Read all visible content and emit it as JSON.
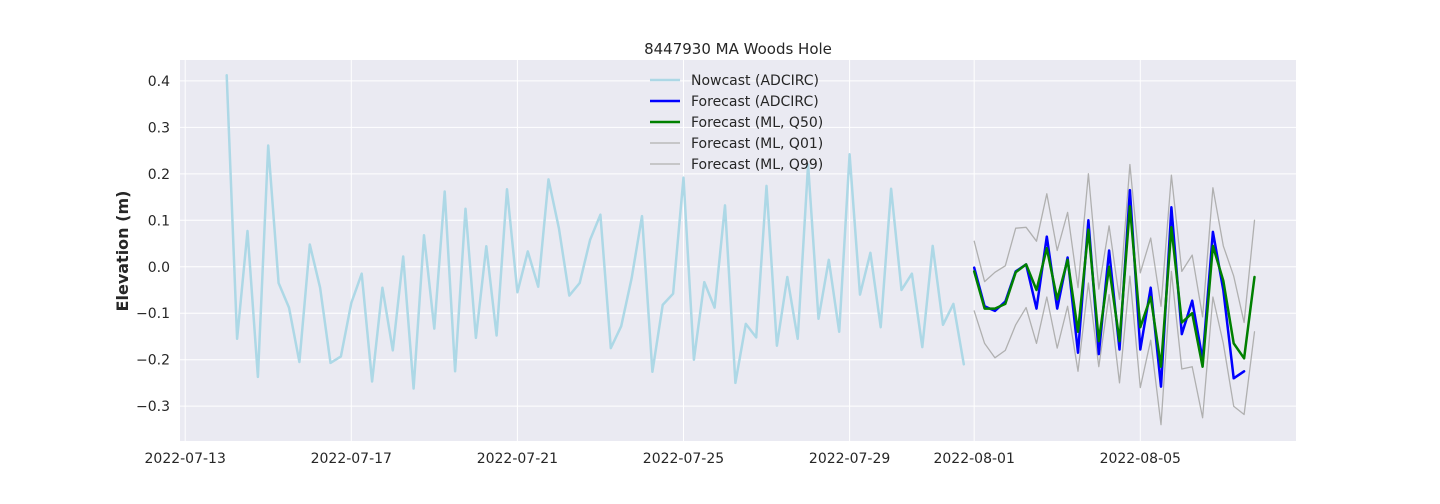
{
  "chart_data": {
    "type": "line",
    "title": "8447930 MA Woods Hole",
    "xlabel": "",
    "ylabel": "Elevation (m)",
    "x_ticks": [
      "2022-07-13",
      "2022-07-17",
      "2022-07-21",
      "2022-07-25",
      "2022-07-29",
      "2022-08-01",
      "2022-08-05"
    ],
    "y_ticks": [
      "0.4",
      "0.3",
      "0.2",
      "0.1",
      "0.0",
      "−0.1",
      "−0.2",
      "−0.3"
    ],
    "xlim": [
      "2022-07-12 21:00",
      "2022-08-08 18:00"
    ],
    "ylim": [
      -0.375,
      0.445
    ],
    "grid": true,
    "legend_position": "upper-center",
    "series": [
      {
        "name": "Nowcast (ADCIRC)",
        "color": "#add8e6",
        "line_width": 2.5,
        "start": "2022-07-14 00:00",
        "step_hours": 6,
        "values": [
          0.412,
          -0.155,
          0.077,
          -0.237,
          0.261,
          -0.035,
          -0.088,
          -0.205,
          0.048,
          -0.045,
          -0.207,
          -0.193,
          -0.078,
          -0.015,
          -0.247,
          -0.045,
          -0.18,
          0.022,
          -0.262,
          0.068,
          -0.133,
          0.162,
          -0.225,
          0.125,
          -0.153,
          0.044,
          -0.148,
          0.167,
          -0.055,
          0.033,
          -0.043,
          0.188,
          0.083,
          -0.062,
          -0.035,
          0.058,
          0.112,
          -0.175,
          -0.128,
          -0.025,
          0.109,
          -0.226,
          -0.082,
          -0.058,
          0.192,
          -0.2,
          -0.033,
          -0.088,
          0.132,
          -0.25,
          -0.123,
          -0.152,
          0.174,
          -0.17,
          -0.022,
          -0.155,
          0.22,
          -0.112,
          0.015,
          -0.14,
          0.242,
          -0.06,
          0.03,
          -0.13,
          0.168,
          -0.05,
          -0.015,
          -0.173,
          0.045,
          -0.125,
          -0.08,
          -0.21
        ]
      },
      {
        "name": "Forecast (ADCIRC)",
        "color": "#0000ff",
        "line_width": 2.5,
        "start": "2022-08-01 00:00",
        "step_hours": 6,
        "values": [
          -0.002,
          -0.085,
          -0.095,
          -0.075,
          -0.01,
          0.005,
          -0.09,
          0.065,
          -0.09,
          0.02,
          -0.185,
          0.1,
          -0.188,
          0.035,
          -0.178,
          0.165,
          -0.178,
          -0.045,
          -0.258,
          0.128,
          -0.145,
          -0.073,
          -0.2,
          0.075,
          -0.05,
          -0.24,
          -0.225
        ]
      },
      {
        "name": "Forecast (ML, Q50)",
        "color": "#008000",
        "line_width": 2.5,
        "start": "2022-08-01 00:00",
        "step_hours": 6,
        "values": [
          -0.01,
          -0.09,
          -0.09,
          -0.08,
          -0.012,
          0.005,
          -0.05,
          0.04,
          -0.07,
          0.015,
          -0.14,
          0.08,
          -0.16,
          0.0,
          -0.16,
          0.13,
          -0.13,
          -0.065,
          -0.215,
          0.085,
          -0.12,
          -0.1,
          -0.215,
          0.045,
          -0.03,
          -0.165,
          -0.197,
          -0.022
        ]
      },
      {
        "name": "Forecast (ML, Q01)",
        "color": "#b0b0b0",
        "line_width": 1.3,
        "start": "2022-08-01 00:00",
        "step_hours": 6,
        "values": [
          -0.095,
          -0.165,
          -0.196,
          -0.18,
          -0.125,
          -0.088,
          -0.165,
          -0.065,
          -0.175,
          -0.085,
          -0.225,
          -0.035,
          -0.215,
          -0.06,
          -0.25,
          -0.02,
          -0.26,
          -0.158,
          -0.34,
          -0.01,
          -0.22,
          -0.215,
          -0.325,
          -0.065,
          -0.165,
          -0.3,
          -0.318,
          -0.14
        ]
      },
      {
        "name": "Forecast (ML, Q99)",
        "color": "#b0b0b0",
        "line_width": 1.3,
        "start": "2022-08-01 00:00",
        "step_hours": 6,
        "values": [
          0.055,
          -0.032,
          -0.012,
          0.002,
          0.083,
          0.085,
          0.055,
          0.157,
          0.035,
          0.117,
          -0.045,
          0.2,
          -0.048,
          0.088,
          -0.07,
          0.22,
          -0.013,
          0.062,
          -0.085,
          0.197,
          -0.01,
          0.025,
          -0.108,
          0.17,
          0.045,
          -0.02,
          -0.12,
          0.1
        ]
      }
    ]
  }
}
